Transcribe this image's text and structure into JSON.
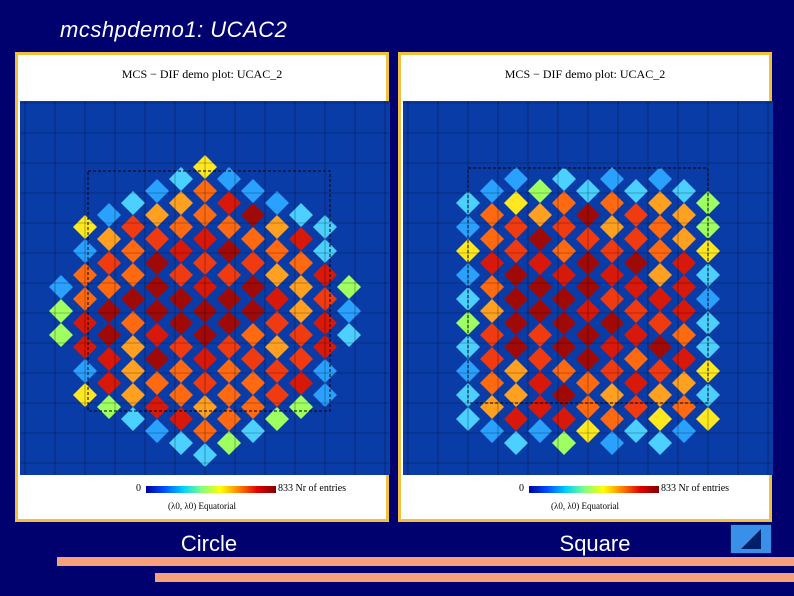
{
  "slide": {
    "title": "mcshpdemo1: UCAC2"
  },
  "panels": [
    {
      "plot_title": "MCS − DIF demo plot: UCAC_2",
      "colorbar_min": "0",
      "colorbar_max": "833 Nr of entries",
      "coord_label": "(λ0, λ0) Equatorial",
      "caption": "Circle"
    },
    {
      "plot_title": "MCS − DIF demo plot: UCAC_2",
      "colorbar_min": "0",
      "colorbar_max": "833 Nr of entries",
      "coord_label": "(λ0, λ0) Equatorial",
      "caption": "Square"
    }
  ],
  "nav": {
    "icon": "previous-triangle-icon"
  },
  "colors": {
    "background": "#00006e",
    "panel_border": "#f0c040",
    "accent_bar": "#f7a07a",
    "nav_button": "#3a8fe8"
  }
}
